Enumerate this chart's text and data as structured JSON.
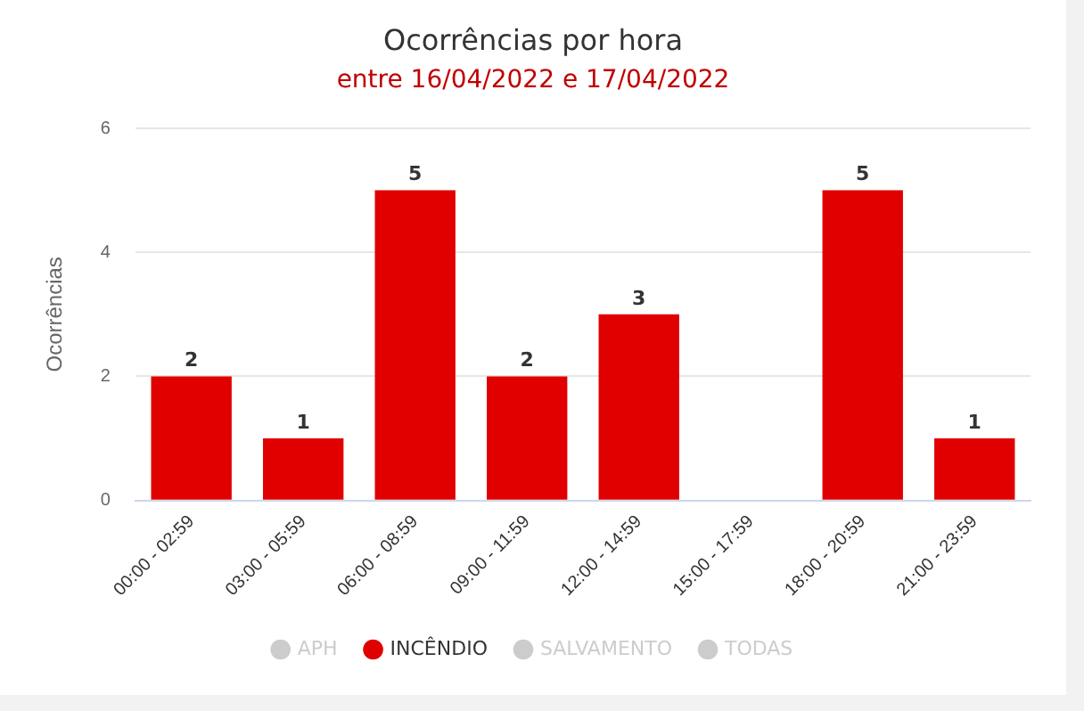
{
  "chart_data": {
    "type": "bar",
    "title": "Ocorrências por hora",
    "subtitle": "entre 16/04/2022 e 17/04/2022",
    "ylabel": "Ocorrências",
    "categories": [
      "00:00 - 02:59",
      "03:00 - 05:59",
      "06:00 - 08:59",
      "09:00 - 11:59",
      "12:00 - 14:59",
      "15:00 - 17:59",
      "18:00 - 20:59",
      "21:00 - 23:59"
    ],
    "series": [
      {
        "name": "APH",
        "color": "#cccccc",
        "values": [
          null,
          null,
          null,
          null,
          null,
          null,
          null,
          null
        ]
      },
      {
        "name": "INCÊNDIO",
        "color": "#e00000",
        "values": [
          2,
          1,
          5,
          2,
          3,
          null,
          5,
          1
        ]
      },
      {
        "name": "SALVAMENTO",
        "color": "#cccccc",
        "values": [
          null,
          null,
          null,
          null,
          null,
          null,
          null,
          null
        ]
      },
      {
        "name": "TODAS",
        "color": "#cccccc",
        "values": [
          null,
          null,
          null,
          null,
          null,
          null,
          null,
          null
        ]
      }
    ],
    "ylim": [
      0,
      6
    ],
    "yticks": [
      0,
      2,
      4,
      6
    ],
    "grid": "y",
    "legend": "bottom",
    "data_labels": true
  }
}
